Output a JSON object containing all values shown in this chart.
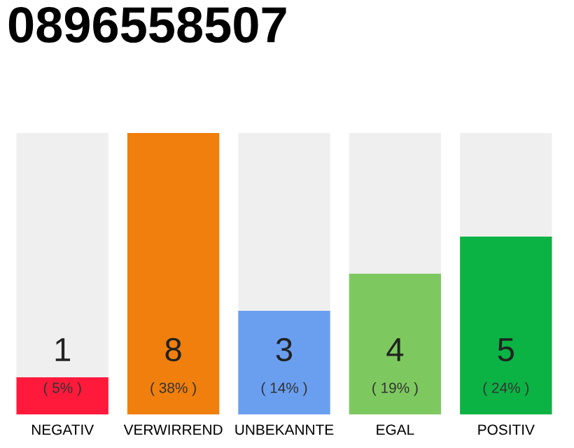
{
  "chart_data": {
    "type": "bar",
    "title": "0896558507",
    "categories": [
      "NEGATIV",
      "VERWIRREND",
      "UNBEKANNTE",
      "EGAL",
      "POSITIV"
    ],
    "values": [
      5,
      38,
      14,
      19,
      24
    ],
    "colors": [
      "#ff1a3c",
      "#f07f0d",
      "#6a9ff0",
      "#7ec95f",
      "#0bb344"
    ],
    "value_labels": [
      "( 5% )",
      "( 38% )",
      "( 14% )",
      "( 19% )",
      "( 24% )"
    ],
    "annotations": [
      "1",
      "8",
      "3",
      "4",
      "5"
    ],
    "grid": false,
    "legend": false
  }
}
